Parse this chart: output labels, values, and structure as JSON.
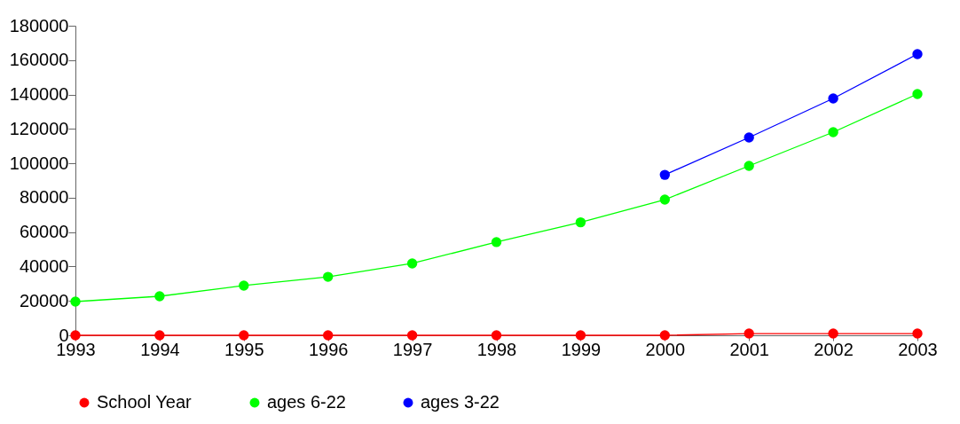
{
  "chart_data": {
    "type": "line",
    "x": [
      1993,
      1994,
      1995,
      1996,
      1997,
      1998,
      1999,
      2000,
      2001,
      2002,
      2003
    ],
    "xlim": [
      1993,
      2003
    ],
    "xticks": [
      1993,
      1994,
      1995,
      1996,
      1997,
      1998,
      1999,
      2000,
      2001,
      2002,
      2003
    ],
    "ylim": [
      0,
      180000
    ],
    "yticks": [
      0,
      20000,
      40000,
      60000,
      80000,
      100000,
      120000,
      140000,
      160000,
      180000
    ],
    "series": [
      {
        "name": "School Year",
        "color": "#ff0000",
        "values": [
          0,
          0,
          0,
          0,
          0,
          0,
          0,
          0,
          1000,
          1000,
          1000
        ]
      },
      {
        "name": "ages 6-22",
        "color": "#00ff00",
        "values": [
          19600,
          22700,
          28900,
          34000,
          41800,
          54200,
          65700,
          78900,
          98500,
          118100,
          140300
        ]
      },
      {
        "name": "ages 3-22",
        "color": "#0000ff",
        "values": [
          null,
          null,
          null,
          null,
          null,
          null,
          null,
          93300,
          115000,
          137700,
          163500
        ]
      }
    ],
    "legend": "bottom",
    "grid": false,
    "marker": "circle",
    "line_style": "solid"
  }
}
